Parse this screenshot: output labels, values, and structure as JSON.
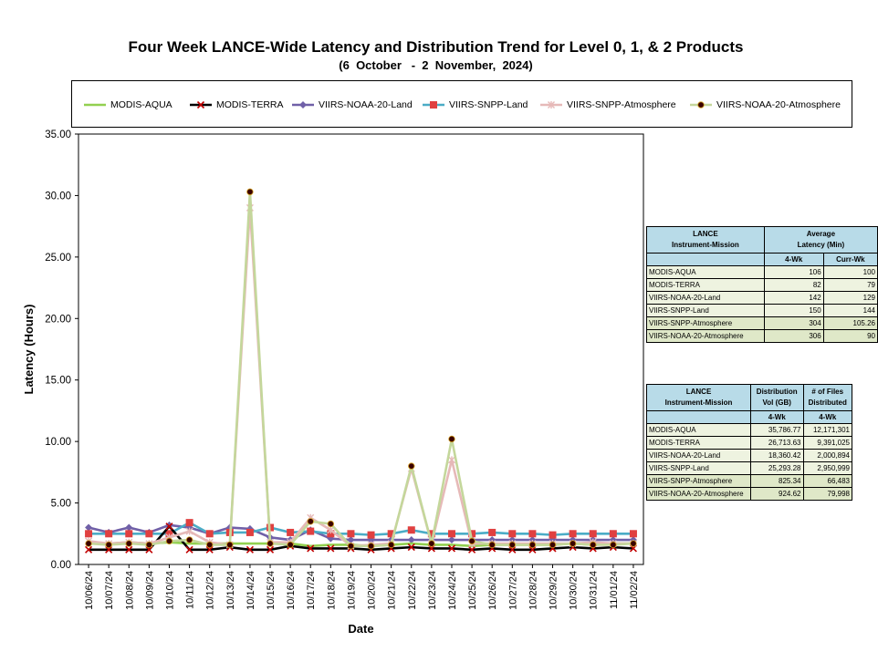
{
  "title": "Four Week LANCE-Wide Latency and Distribution Trend for Level 0, 1, & 2 Products",
  "subtitle": "(6  October   -  2  November,  2024)",
  "legend": [
    {
      "name": "MODIS-AQUA",
      "color": "#92d050",
      "marker": "none"
    },
    {
      "name": "MODIS-TERRA",
      "color": "#000000",
      "marker": "x",
      "marker_color": "#c00000"
    },
    {
      "name": "VIIRS-NOAA-20-Land",
      "color": "#7060a8",
      "marker": "diamond"
    },
    {
      "name": "VIIRS-SNPP-Land",
      "color": "#4bacc6",
      "marker": "square",
      "marker_color": "#e04040"
    },
    {
      "name": "VIIRS-SNPP-Atmosphere",
      "color": "#e6b9b8",
      "marker": "star"
    },
    {
      "name": "VIIRS-NOAA-20-Atmosphere",
      "color": "#c4d79b",
      "marker": "circle",
      "marker_color": "#3a0000"
    }
  ],
  "latency_table": {
    "header_col1": "LANCE\nInstrument-Mission",
    "header_col2": "Average\nLatency (Min)",
    "sub_a": "4-Wk",
    "sub_b": "Curr-Wk",
    "rows": [
      {
        "name": "MODIS-AQUA",
        "a": "106",
        "b": "100"
      },
      {
        "name": "MODIS-TERRA",
        "a": "82",
        "b": "79"
      },
      {
        "name": "VIIRS-NOAA-20-Land",
        "a": "142",
        "b": "129"
      },
      {
        "name": "VIIRS-SNPP-Land",
        "a": "150",
        "b": "144"
      },
      {
        "name": "VIIRS-SNPP-Atmosphere",
        "a": "304",
        "b": "105.26"
      },
      {
        "name": "VIIRS-NOAA-20-Atmosphere",
        "a": "306",
        "b": "90"
      }
    ]
  },
  "distribution_table": {
    "header_col1": "LANCE\nInstrument-Mission",
    "header_col2": "Distribution\nVol (GB)",
    "header_col3": "# of Files\nDistributed",
    "sub_a": "4-Wk",
    "sub_b": "4-Wk",
    "rows": [
      {
        "name": "MODIS-AQUA",
        "a": "35,786.77",
        "b": "12,171,301"
      },
      {
        "name": "MODIS-TERRA",
        "a": "26,713.63",
        "b": "9,391,025"
      },
      {
        "name": "VIIRS-NOAA-20-Land",
        "a": "18,360.42",
        "b": "2,000,894"
      },
      {
        "name": "VIIRS-SNPP-Land",
        "a": "25,293.28",
        "b": "2,950,999"
      },
      {
        "name": "VIIRS-SNPP-Atmosphere",
        "a": "825.34",
        "b": "66,483"
      },
      {
        "name": "VIIRS-NOAA-20-Atmosphere",
        "a": "924.62",
        "b": "79,998"
      }
    ]
  },
  "chart_data": {
    "type": "line",
    "xlabel": "Date",
    "ylabel": "Latency (Hours)",
    "ylim": [
      0,
      35
    ],
    "yticks": [
      "0.00",
      "5.00",
      "10.00",
      "15.00",
      "20.00",
      "25.00",
      "30.00",
      "35.00"
    ],
    "grid": false,
    "legend_position": "top",
    "categories": [
      "10/06/24",
      "10/07/24",
      "10/08/24",
      "10/09/24",
      "10/10/24",
      "10/11/24",
      "10/12/24",
      "10/13/24",
      "10/14/24",
      "10/15/24",
      "10/16/24",
      "10/17/24",
      "10/18/24",
      "10/19/24",
      "10/20/24",
      "10/21/24",
      "10/22/24",
      "10/23/24",
      "10/24/24",
      "10/25/24",
      "10/26/24",
      "10/27/24",
      "10/28/24",
      "10/29/24",
      "10/30/24",
      "10/31/24",
      "11/01/24",
      "11/02/24"
    ],
    "series": [
      {
        "name": "MODIS-AQUA",
        "values": [
          1.8,
          1.7,
          1.8,
          1.7,
          1.8,
          1.7,
          1.7,
          1.7,
          1.7,
          1.7,
          1.7,
          1.5,
          1.6,
          1.6,
          1.5,
          1.6,
          1.7,
          1.6,
          1.6,
          1.5,
          1.6,
          1.6,
          1.6,
          1.6,
          1.7,
          1.6,
          1.7,
          1.7
        ]
      },
      {
        "name": "MODIS-TERRA",
        "values": [
          1.2,
          1.2,
          1.2,
          1.2,
          3.1,
          1.2,
          1.2,
          1.4,
          1.2,
          1.2,
          1.5,
          1.3,
          1.3,
          1.3,
          1.2,
          1.3,
          1.4,
          1.3,
          1.3,
          1.2,
          1.3,
          1.2,
          1.2,
          1.3,
          1.4,
          1.3,
          1.4,
          1.3
        ]
      },
      {
        "name": "VIIRS-NOAA-20-Land",
        "values": [
          3.0,
          2.6,
          3.0,
          2.6,
          3.2,
          3.0,
          2.5,
          3.0,
          2.9,
          2.2,
          2.0,
          2.8,
          2.1,
          2.0,
          2.0,
          2.0,
          2.0,
          2.0,
          2.0,
          2.0,
          2.0,
          2.0,
          2.0,
          2.0,
          2.0,
          2.0,
          2.0,
          2.0
        ]
      },
      {
        "name": "VIIRS-SNPP-Land",
        "values": [
          2.5,
          2.5,
          2.5,
          2.5,
          2.5,
          3.4,
          2.5,
          2.6,
          2.6,
          3.0,
          2.6,
          2.7,
          2.5,
          2.5,
          2.4,
          2.5,
          2.8,
          2.5,
          2.5,
          2.5,
          2.6,
          2.5,
          2.5,
          2.4,
          2.5,
          2.5,
          2.5,
          2.5
        ]
      },
      {
        "name": "VIIRS-SNPP-Atmosphere",
        "values": [
          1.9,
          1.7,
          1.8,
          1.7,
          2.2,
          2.7,
          1.8,
          1.6,
          29.0,
          1.8,
          1.8,
          3.8,
          2.8,
          1.5,
          1.6,
          1.7,
          7.8,
          1.7,
          8.5,
          1.7,
          1.7,
          1.7,
          1.7,
          1.7,
          1.7,
          1.8,
          1.7,
          1.7
        ]
      },
      {
        "name": "VIIRS-NOAA-20-Atmosphere",
        "values": [
          1.7,
          1.6,
          1.7,
          1.6,
          1.9,
          2.0,
          1.6,
          1.6,
          30.3,
          1.7,
          1.6,
          3.5,
          3.3,
          1.5,
          1.5,
          1.6,
          8.0,
          1.7,
          10.2,
          1.9,
          1.6,
          1.6,
          1.6,
          1.6,
          1.7,
          1.6,
          1.6,
          1.7
        ]
      }
    ]
  }
}
